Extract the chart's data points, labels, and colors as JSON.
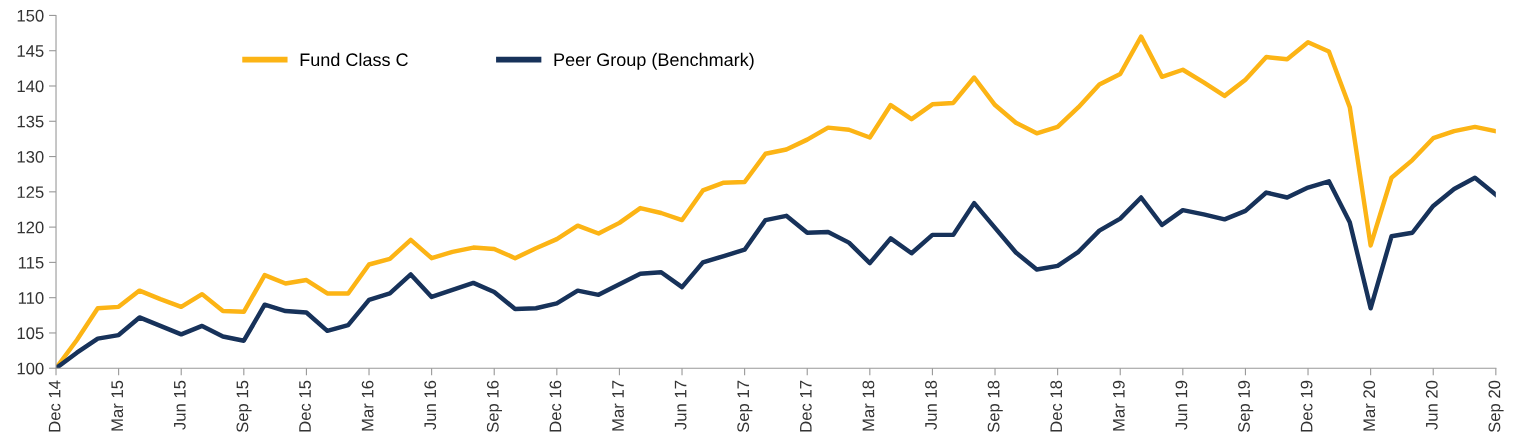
{
  "chart_data": {
    "type": "line",
    "categories": [
      "Dec 14",
      null,
      null,
      "Mar 15",
      null,
      null,
      "Jun 15",
      null,
      null,
      "Sep 15",
      null,
      null,
      "Dec 15",
      null,
      null,
      "Mar 16",
      null,
      null,
      "Jun 16",
      null,
      null,
      "Sep 16",
      null,
      null,
      "Dec 16",
      null,
      null,
      "Mar 17",
      null,
      null,
      "Jun 17",
      null,
      null,
      "Sep 17",
      null,
      null,
      "Dec 17",
      null,
      null,
      "Mar 18",
      null,
      null,
      "Jun 18",
      null,
      null,
      "Sep 18",
      null,
      null,
      "Dec 18",
      null,
      null,
      "Mar 19",
      null,
      null,
      "Jun 19",
      null,
      null,
      "Sep 19",
      null,
      null,
      "Dec 19",
      null,
      null,
      "Mar 20",
      null,
      null,
      "Jun 20",
      null,
      null,
      "Sep 20"
    ],
    "series": [
      {
        "name": "Fund Class C",
        "color": "#fcb415",
        "values": [
          100,
          104,
          108.5,
          108.7,
          111,
          109.8,
          108.7,
          110.5,
          108.1,
          108,
          113.2,
          112,
          112.5,
          110.6,
          110.6,
          114.7,
          115.5,
          118.2,
          115.6,
          116.5,
          117.1,
          116.9,
          115.6,
          117,
          118.3,
          120.2,
          119.1,
          120.6,
          122.7,
          122,
          121,
          125.2,
          126.3,
          126.4,
          130.4,
          131,
          132.4,
          134.1,
          133.8,
          132.7,
          137.3,
          135.3,
          137.4,
          137.6,
          141.2,
          137.3,
          134.8,
          133.3,
          134.2,
          137,
          140.2,
          141.7,
          147,
          141.3,
          142.3,
          140.5,
          138.6,
          140.9,
          144.1,
          143.8,
          146.2,
          144.9,
          137,
          117.4,
          127,
          129.5,
          132.6,
          133.6,
          134.2,
          133.6
        ]
      },
      {
        "name": "Peer Group (Benchmark)",
        "color": "#17325a",
        "values": [
          100,
          102.2,
          104.2,
          104.7,
          107.2,
          106,
          104.8,
          106,
          104.5,
          103.9,
          109,
          108.1,
          107.9,
          105.3,
          106.1,
          109.7,
          110.6,
          113.3,
          110.1,
          111.1,
          112.1,
          110.8,
          108.4,
          108.5,
          109.2,
          111,
          110.4,
          111.9,
          113.4,
          113.6,
          111.5,
          115,
          115.9,
          116.8,
          121,
          121.6,
          119.2,
          119.3,
          117.8,
          114.9,
          118.4,
          116.3,
          118.9,
          118.9,
          123.4,
          119.9,
          116.4,
          114,
          114.5,
          116.5,
          119.5,
          121.2,
          124.2,
          120.3,
          122.4,
          121.8,
          121.1,
          122.3,
          124.9,
          124.2,
          125.6,
          126.5,
          120.7,
          108.5,
          118.7,
          119.2,
          123,
          125.4,
          127,
          124.6
        ]
      }
    ],
    "ylim": [
      100,
      150
    ],
    "yticks": [
      100,
      105,
      110,
      115,
      120,
      125,
      130,
      135,
      140,
      145,
      150
    ],
    "grid": false,
    "legend": "top left",
    "marker": "none",
    "line_style": "solid"
  }
}
